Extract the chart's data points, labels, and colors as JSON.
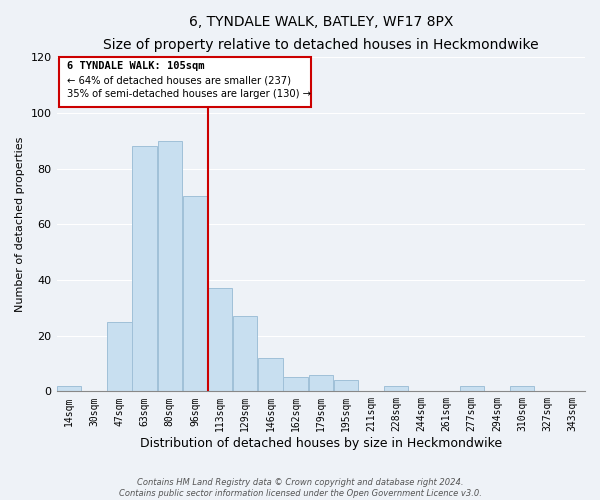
{
  "title": "6, TYNDALE WALK, BATLEY, WF17 8PX",
  "subtitle": "Size of property relative to detached houses in Heckmondwike",
  "xlabel": "Distribution of detached houses by size in Heckmondwike",
  "ylabel": "Number of detached properties",
  "bar_color": "#c8dff0",
  "bar_edge_color": "#a0c0d8",
  "bins": [
    "14sqm",
    "30sqm",
    "47sqm",
    "63sqm",
    "80sqm",
    "96sqm",
    "113sqm",
    "129sqm",
    "146sqm",
    "162sqm",
    "179sqm",
    "195sqm",
    "211sqm",
    "228sqm",
    "244sqm",
    "261sqm",
    "277sqm",
    "294sqm",
    "310sqm",
    "327sqm",
    "343sqm"
  ],
  "values": [
    2,
    0,
    25,
    88,
    90,
    70,
    37,
    27,
    12,
    5,
    6,
    4,
    0,
    2,
    0,
    0,
    2,
    0,
    2,
    0,
    0
  ],
  "vline_x": 5.5,
  "property_line_label": "6 TYNDALE WALK: 105sqm",
  "annotation_line1": "← 64% of detached houses are smaller (237)",
  "annotation_line2": "35% of semi-detached houses are larger (130) →",
  "vline_color": "#cc0000",
  "footer1": "Contains HM Land Registry data © Crown copyright and database right 2024.",
  "footer2": "Contains public sector information licensed under the Open Government Licence v3.0.",
  "ylim": [
    0,
    120
  ],
  "yticks": [
    0,
    20,
    40,
    60,
    80,
    100,
    120
  ],
  "background_color": "#eef2f7",
  "grid_color": "#ffffff",
  "title_fontsize": 10,
  "subtitle_fontsize": 8.5,
  "ylabel_fontsize": 8,
  "xlabel_fontsize": 9,
  "tick_fontsize": 7,
  "footer_fontsize": 6
}
